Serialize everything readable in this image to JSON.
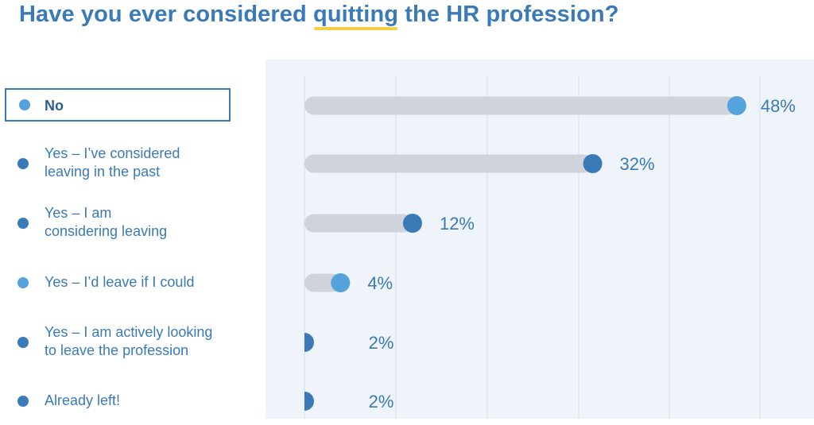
{
  "title": {
    "before": "Have you ever considered ",
    "highlight": "quitting",
    "after": " the HR profession?"
  },
  "colors": {
    "title": "#3a7ab6",
    "highlight_underline": "#f2cf45",
    "panel_bg": "#eef4fa",
    "track": "#cfd3db",
    "dot_dark": "#3a7ab6",
    "dot_light": "#55a3dd",
    "grid": "#d7dde6"
  },
  "chart_data": {
    "type": "bar",
    "title": "Have you ever considered quitting the HR profession?",
    "xlabel": "",
    "ylabel": "",
    "unit": "%",
    "xlim": [
      0,
      50
    ],
    "grid": true,
    "selected_category": "No",
    "categories": [
      "No",
      "Yes – I’ve considered\nleaving in the past",
      "Yes – I am\nconsidering leaving",
      "Yes – I’d leave if I could",
      "Yes – I am actively looking\nto leave the profession",
      "Already left!"
    ],
    "values": [
      48,
      32,
      12,
      4,
      2,
      2
    ],
    "labels": [
      "48%",
      "32%",
      "12%",
      "4%",
      "2%",
      "2%"
    ],
    "dot_colors": [
      "#55a3dd",
      "#3a7ab6",
      "#3a7ab6",
      "#55a3dd",
      "#3a7ab6",
      "#3a7ab6"
    ]
  }
}
